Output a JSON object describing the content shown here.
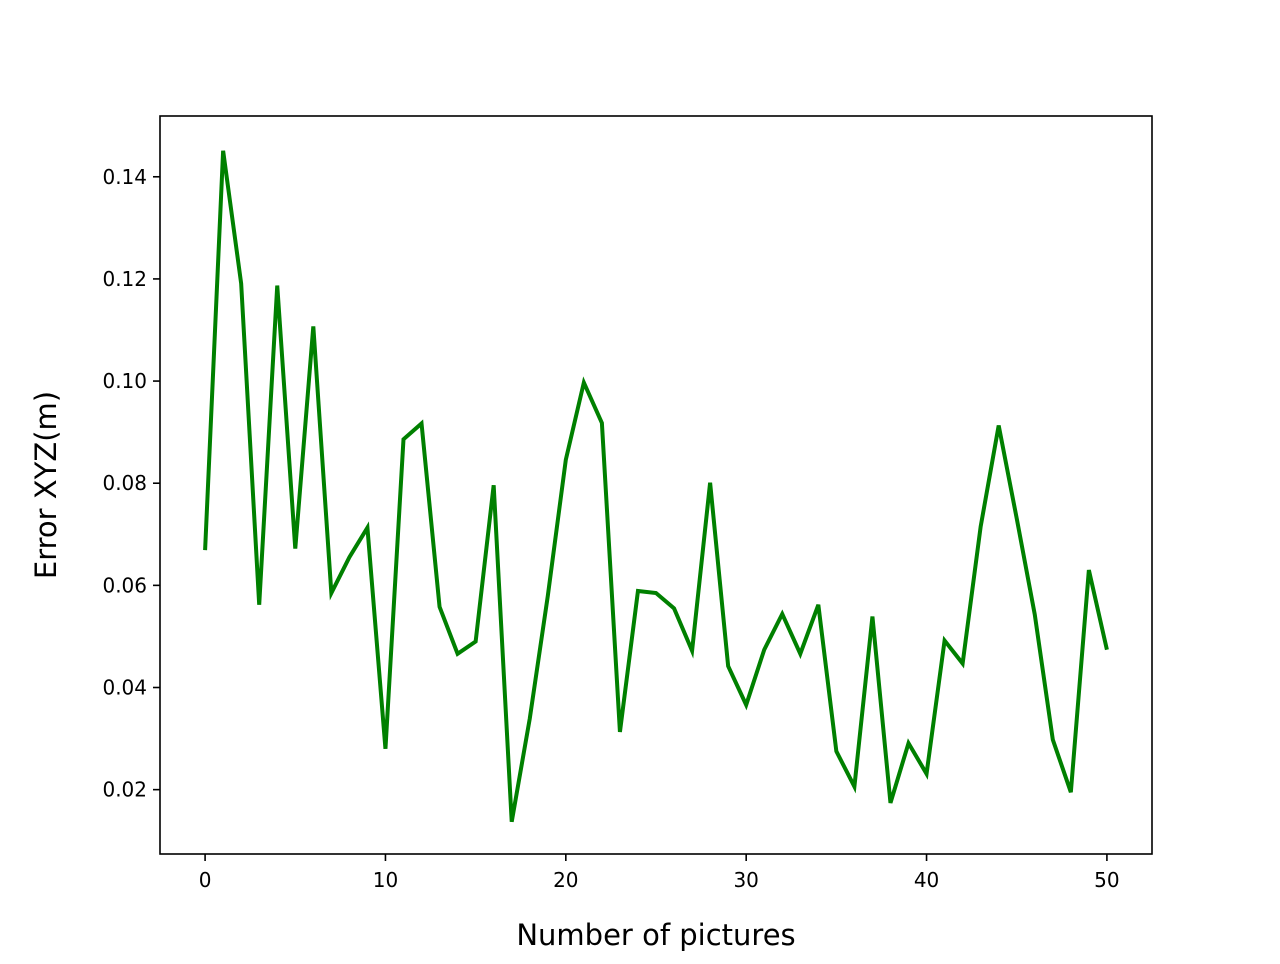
{
  "chart_data": {
    "type": "line",
    "title": "",
    "xlabel": "Number of pictures",
    "ylabel": "Error XYZ(m)",
    "xlim": [
      -2.5,
      52.5
    ],
    "ylim": [
      0.0074,
      0.1519
    ],
    "xticks": [
      0,
      10,
      20,
      30,
      40,
      50
    ],
    "yticks": [
      0.02,
      0.04,
      0.06,
      0.08,
      0.1,
      0.12,
      0.14
    ],
    "xtick_labels": [
      "0",
      "10",
      "20",
      "30",
      "40",
      "50"
    ],
    "ytick_labels": [
      "0.02",
      "0.04",
      "0.06",
      "0.08",
      "0.10",
      "0.12",
      "0.14"
    ],
    "grid": false,
    "legend": "none",
    "series": [
      {
        "color": "#008000",
        "x": [
          0,
          1,
          2,
          3,
          4,
          5,
          6,
          7,
          8,
          9,
          10,
          11,
          12,
          13,
          14,
          15,
          16,
          17,
          18,
          19,
          20,
          21,
          22,
          23,
          24,
          25,
          26,
          27,
          28,
          29,
          30,
          31,
          32,
          33,
          34,
          35,
          36,
          37,
          38,
          39,
          40,
          41,
          42,
          43,
          44,
          45,
          46,
          47,
          48,
          49,
          50
        ],
        "y": [
          0.0669,
          0.1451,
          0.1191,
          0.0562,
          0.1187,
          0.0672,
          0.1107,
          0.0585,
          0.0655,
          0.0713,
          0.028,
          0.0886,
          0.0917,
          0.0558,
          0.0466,
          0.049,
          0.0796,
          0.0137,
          0.0339,
          0.0579,
          0.0846,
          0.0997,
          0.0918,
          0.0313,
          0.0589,
          0.0585,
          0.0555,
          0.0472,
          0.0801,
          0.0442,
          0.0366,
          0.0474,
          0.0544,
          0.0466,
          0.0562,
          0.0275,
          0.0206,
          0.0539,
          0.0174,
          0.0291,
          0.0231,
          0.0492,
          0.0447,
          0.0715,
          0.0913,
          0.0731,
          0.0543,
          0.0298,
          0.0195,
          0.063,
          0.0474
        ]
      }
    ]
  }
}
